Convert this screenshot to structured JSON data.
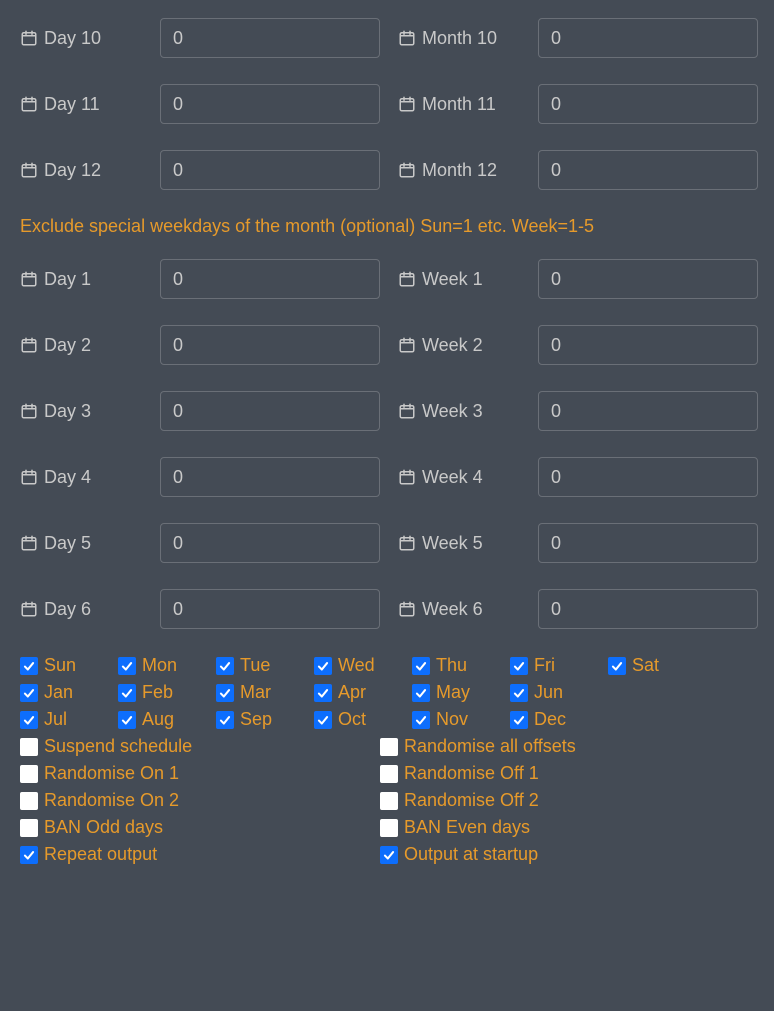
{
  "colors": {
    "background": "#444b55",
    "text": "#c9c9c9",
    "accent": "#e69a2b",
    "input_border": "#6a6f77",
    "checkbox_checked_bg": "#0d6efd",
    "checkbox_unchecked_bg": "#ffffff",
    "checkmark": "#ffffff"
  },
  "top_rows": [
    {
      "left_label": "Day 10",
      "left_value": "0",
      "right_label": "Month 10",
      "right_value": "0"
    },
    {
      "left_label": "Day 11",
      "left_value": "0",
      "right_label": "Month 11",
      "right_value": "0"
    },
    {
      "left_label": "Day 12",
      "left_value": "0",
      "right_label": "Month 12",
      "right_value": "0"
    }
  ],
  "section_title": "Exclude special weekdays of the month (optional) Sun=1 etc. Week=1-5",
  "week_rows": [
    {
      "left_label": "Day 1",
      "left_value": "0",
      "right_label": "Week 1",
      "right_value": "0"
    },
    {
      "left_label": "Day 2",
      "left_value": "0",
      "right_label": "Week 2",
      "right_value": "0"
    },
    {
      "left_label": "Day 3",
      "left_value": "0",
      "right_label": "Week 3",
      "right_value": "0"
    },
    {
      "left_label": "Day 4",
      "left_value": "0",
      "right_label": "Week 4",
      "right_value": "0"
    },
    {
      "left_label": "Day 5",
      "left_value": "0",
      "right_label": "Week 5",
      "right_value": "0"
    },
    {
      "left_label": "Day 6",
      "left_value": "0",
      "right_label": "Week 6",
      "right_value": "0"
    }
  ],
  "weekday_checks": [
    {
      "label": "Sun",
      "checked": true
    },
    {
      "label": "Mon",
      "checked": true
    },
    {
      "label": "Tue",
      "checked": true
    },
    {
      "label": "Wed",
      "checked": true
    },
    {
      "label": "Thu",
      "checked": true
    },
    {
      "label": "Fri",
      "checked": true
    },
    {
      "label": "Sat",
      "checked": true
    }
  ],
  "month_checks_row1": [
    {
      "label": "Jan",
      "checked": true
    },
    {
      "label": "Feb",
      "checked": true
    },
    {
      "label": "Mar",
      "checked": true
    },
    {
      "label": "Apr",
      "checked": true
    },
    {
      "label": "May",
      "checked": true
    },
    {
      "label": "Jun",
      "checked": true
    }
  ],
  "month_checks_row2": [
    {
      "label": "Jul",
      "checked": true
    },
    {
      "label": "Aug",
      "checked": true
    },
    {
      "label": "Sep",
      "checked": true
    },
    {
      "label": "Oct",
      "checked": true
    },
    {
      "label": "Nov",
      "checked": true
    },
    {
      "label": "Dec",
      "checked": true
    }
  ],
  "option_rows": [
    {
      "left": {
        "label": "Suspend schedule",
        "checked": false
      },
      "right": {
        "label": "Randomise all offsets",
        "checked": false
      }
    },
    {
      "left": {
        "label": "Randomise On 1",
        "checked": false
      },
      "right": {
        "label": "Randomise Off 1",
        "checked": false
      }
    },
    {
      "left": {
        "label": "Randomise On 2",
        "checked": false
      },
      "right": {
        "label": "Randomise Off 2",
        "checked": false
      }
    },
    {
      "left": {
        "label": "BAN Odd days",
        "checked": false
      },
      "right": {
        "label": "BAN Even days",
        "checked": false
      }
    },
    {
      "left": {
        "label": "Repeat output",
        "checked": true
      },
      "right": {
        "label": "Output at startup",
        "checked": true
      }
    }
  ]
}
